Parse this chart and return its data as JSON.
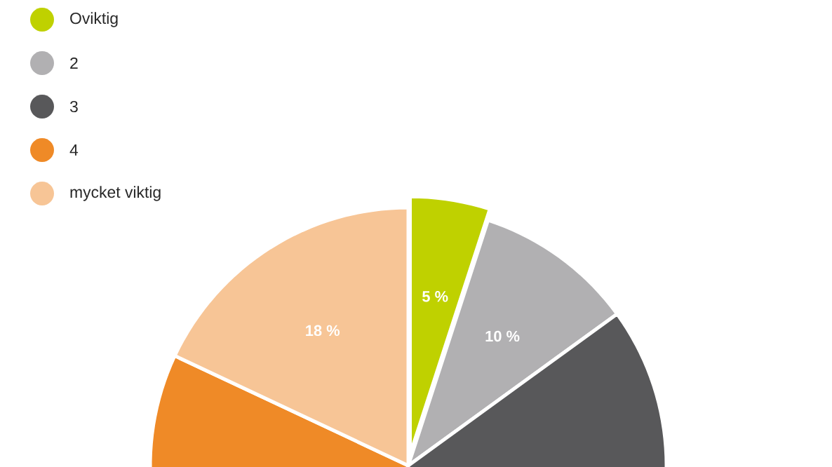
{
  "chart_data": {
    "type": "pie",
    "categories": [
      "Oviktig",
      "2",
      "3",
      "4",
      "mycket viktig"
    ],
    "values": [
      5,
      10,
      40,
      27,
      18
    ],
    "colors": [
      "#bfd100",
      "#b1b0b2",
      "#58585a",
      "#ef8a27",
      "#f7c596"
    ],
    "value_labels": [
      "5 %",
      "10 %",
      null,
      null,
      "18 %"
    ],
    "legend": "top left"
  }
}
